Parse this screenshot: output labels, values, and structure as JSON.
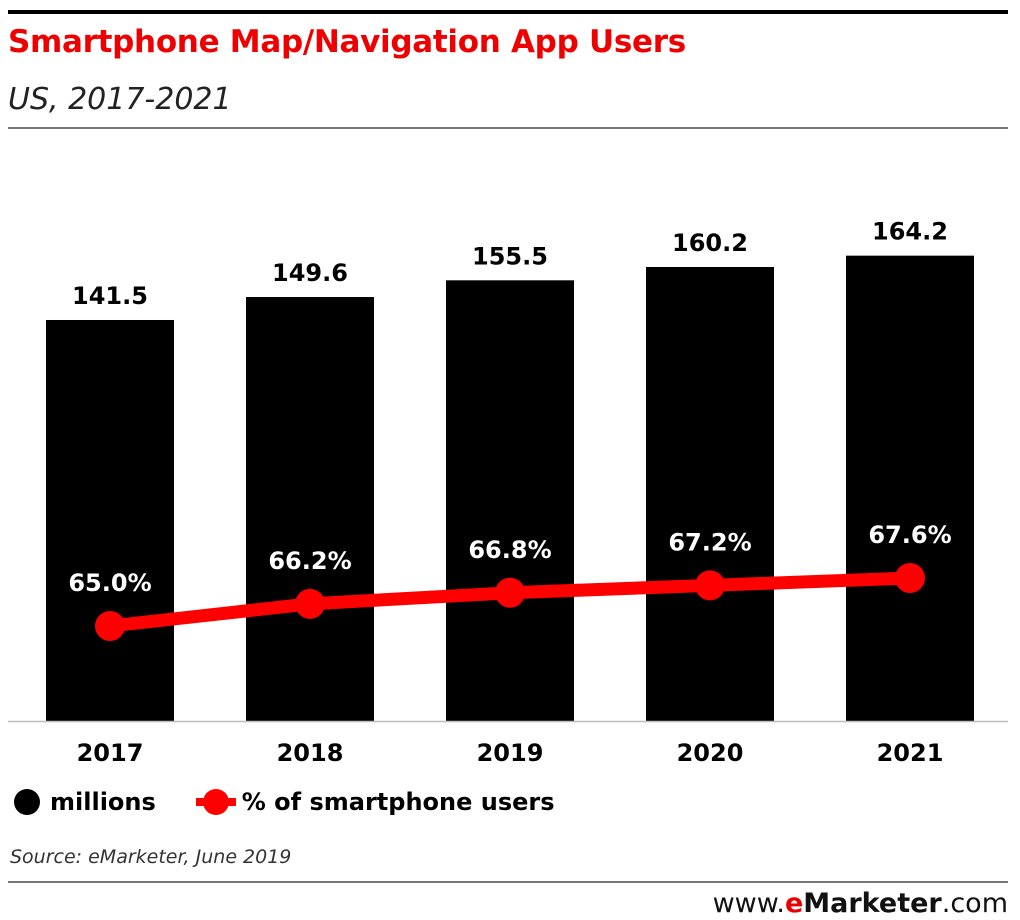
{
  "header": {
    "title": "Smartphone Map/Navigation App Users",
    "subtitle": "US, 2017-2021"
  },
  "chart_data": {
    "type": "bar+line",
    "categories": [
      "2017",
      "2018",
      "2019",
      "2020",
      "2021"
    ],
    "series": [
      {
        "name": "millions",
        "type": "bar",
        "color": "#000000",
        "values": [
          141.5,
          149.6,
          155.5,
          160.2,
          164.2
        ],
        "labels": [
          "141.5",
          "149.6",
          "155.5",
          "160.2",
          "164.2"
        ]
      },
      {
        "name": "% of smartphone users",
        "type": "line",
        "color": "#ff0000",
        "values": [
          65.0,
          66.2,
          66.8,
          67.2,
          67.6
        ],
        "labels": [
          "65.0%",
          "66.2%",
          "66.8%",
          "67.2%",
          "67.6%"
        ]
      }
    ],
    "legend_position": "bottom-left",
    "grid": false
  },
  "footer": {
    "source": "Source: eMarketer, June 2019",
    "brand_prefix": "www.",
    "brand_e": "e",
    "brand_name": "Marketer",
    "brand_suffix": ".com"
  }
}
